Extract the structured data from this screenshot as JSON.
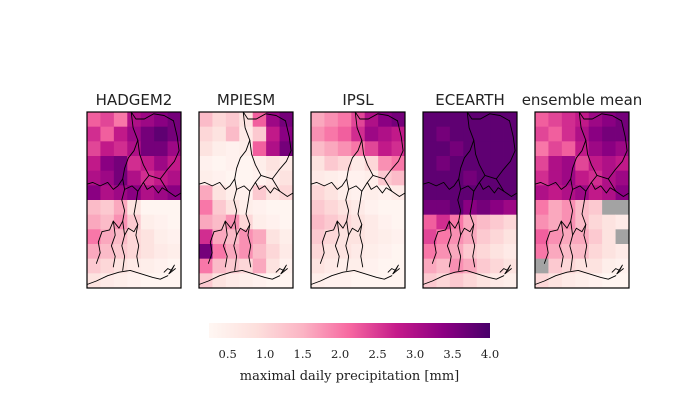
{
  "colors": {
    "missing": "#a3a3a3",
    "scale": [
      "#fff7f3",
      "#fde0dd",
      "#fbb4c4",
      "#f768a1",
      "#c51b8a",
      "#8d0083",
      "#49006a"
    ]
  },
  "chart_data": {
    "type": "heatmap",
    "colorbar": {
      "label": "maximal daily precipitation [mm]",
      "vmin": 0.25,
      "vmax": 4.0,
      "ticks": [
        "0.5",
        "1.0",
        "1.5",
        "2.0",
        "2.5",
        "3.0",
        "3.5",
        "4.0"
      ],
      "tick_values": [
        0.5,
        1.0,
        1.5,
        2.0,
        2.5,
        3.0,
        3.5,
        4.0
      ]
    },
    "panels": [
      {
        "title": "HADGEM2",
        "grid": [
          [
            2.2,
            2.4,
            2.0,
            3.0,
            3.2,
            3.4,
            3.6
          ],
          [
            2.6,
            2.2,
            2.8,
            3.2,
            3.6,
            3.8,
            3.6
          ],
          [
            2.4,
            2.8,
            2.6,
            3.0,
            3.6,
            3.6,
            3.2
          ],
          [
            2.8,
            3.4,
            3.6,
            2.6,
            2.8,
            3.2,
            2.8
          ],
          [
            3.0,
            3.2,
            3.6,
            3.0,
            2.6,
            2.8,
            3.0
          ],
          [
            3.4,
            3.0,
            3.2,
            3.4,
            3.0,
            3.2,
            3.4
          ],
          [
            1.4,
            1.2,
            1.6,
            0.8,
            0.3,
            0.3,
            0.3
          ],
          [
            1.6,
            1.4,
            1.8,
            1.2,
            0.5,
            0.4,
            0.3
          ],
          [
            2.0,
            1.6,
            1.4,
            1.0,
            0.8,
            0.5,
            0.4
          ],
          [
            1.6,
            1.4,
            1.2,
            1.0,
            0.8,
            0.6,
            0.5
          ],
          [
            1.2,
            1.0,
            0.8,
            0.6,
            0.5,
            0.4,
            0.3
          ],
          [
            0.8,
            0.6,
            0.5,
            0.4,
            0.3,
            0.3,
            0.3
          ]
        ]
      },
      {
        "title": "MPIESM",
        "grid": [
          [
            1.4,
            1.0,
            1.2,
            0.8,
            2.2,
            3.2,
            3.6
          ],
          [
            1.0,
            0.8,
            1.4,
            0.6,
            1.2,
            2.8,
            3.4
          ],
          [
            0.8,
            0.5,
            0.4,
            0.5,
            2.2,
            3.0,
            3.6
          ],
          [
            0.4,
            0.3,
            0.4,
            0.3,
            0.5,
            0.8,
            0.6
          ],
          [
            0.5,
            0.4,
            0.3,
            0.3,
            0.4,
            0.6,
            0.8
          ],
          [
            1.6,
            0.8,
            0.5,
            0.4,
            1.2,
            0.8,
            1.0
          ],
          [
            2.0,
            1.2,
            0.8,
            0.5,
            0.4,
            0.3,
            0.3
          ],
          [
            1.6,
            1.4,
            1.8,
            1.0,
            0.5,
            0.4,
            0.3
          ],
          [
            2.6,
            1.6,
            1.4,
            1.8,
            1.6,
            0.8,
            0.5
          ],
          [
            3.6,
            2.0,
            1.6,
            1.8,
            1.4,
            1.0,
            0.6
          ],
          [
            2.0,
            1.4,
            1.2,
            1.0,
            1.6,
            0.8,
            0.4
          ],
          [
            1.2,
            0.8,
            0.6,
            0.5,
            0.4,
            0.3,
            0.3
          ]
        ]
      },
      {
        "title": "IPSL",
        "grid": [
          [
            1.6,
            1.8,
            2.0,
            2.4,
            3.0,
            3.4,
            3.6
          ],
          [
            1.8,
            2.0,
            2.2,
            2.6,
            3.2,
            3.0,
            2.8
          ],
          [
            1.4,
            1.6,
            1.8,
            2.0,
            2.4,
            2.8,
            2.6
          ],
          [
            0.8,
            1.2,
            1.0,
            0.6,
            1.0,
            1.8,
            2.0
          ],
          [
            0.6,
            0.5,
            0.4,
            0.4,
            0.5,
            1.2,
            1.4
          ],
          [
            1.0,
            0.8,
            0.5,
            0.4,
            0.5,
            0.4,
            0.6
          ],
          [
            1.2,
            1.0,
            0.8,
            0.6,
            0.4,
            0.3,
            0.3
          ],
          [
            1.4,
            1.2,
            1.0,
            0.8,
            0.6,
            0.4,
            0.3
          ],
          [
            1.2,
            1.0,
            0.8,
            0.8,
            0.6,
            0.5,
            0.4
          ],
          [
            1.0,
            0.8,
            0.8,
            0.6,
            0.5,
            0.4,
            0.3
          ],
          [
            0.8,
            0.6,
            0.5,
            0.5,
            0.4,
            0.3,
            0.3
          ],
          [
            0.5,
            0.4,
            0.4,
            0.3,
            0.3,
            0.3,
            0.3
          ]
        ]
      },
      {
        "title": "ECEARTH",
        "grid": [
          [
            3.8,
            3.8,
            3.8,
            3.8,
            3.8,
            3.8,
            3.8
          ],
          [
            3.8,
            3.6,
            3.8,
            3.8,
            3.8,
            3.8,
            3.8
          ],
          [
            3.8,
            3.8,
            3.6,
            3.8,
            3.8,
            3.8,
            3.8
          ],
          [
            3.8,
            3.6,
            3.8,
            3.8,
            3.8,
            3.8,
            3.8
          ],
          [
            3.8,
            3.8,
            3.8,
            3.6,
            3.8,
            3.8,
            3.8
          ],
          [
            3.8,
            3.8,
            3.8,
            3.8,
            3.8,
            3.8,
            3.8
          ],
          [
            3.6,
            3.6,
            3.8,
            3.4,
            3.6,
            3.4,
            3.2
          ],
          [
            2.2,
            2.6,
            2.0,
            1.6,
            1.4,
            1.2,
            1.0
          ],
          [
            2.4,
            2.0,
            1.8,
            1.6,
            1.2,
            1.0,
            0.8
          ],
          [
            2.0,
            1.8,
            1.6,
            1.2,
            1.0,
            0.8,
            0.6
          ],
          [
            1.6,
            1.4,
            1.8,
            1.6,
            1.2,
            1.0,
            0.8
          ],
          [
            1.2,
            1.0,
            1.2,
            1.0,
            0.8,
            0.6,
            0.5
          ]
        ]
      },
      {
        "title": "ensemble mean",
        "grid": [
          [
            2.2,
            2.4,
            2.6,
            2.8,
            3.2,
            3.4,
            3.6
          ],
          [
            2.4,
            2.2,
            2.6,
            3.0,
            3.4,
            3.6,
            3.6
          ],
          [
            2.0,
            2.4,
            2.2,
            2.8,
            3.2,
            3.4,
            3.2
          ],
          [
            2.4,
            3.0,
            3.2,
            2.4,
            2.8,
            3.0,
            2.8
          ],
          [
            2.6,
            3.0,
            3.2,
            2.8,
            2.6,
            3.0,
            3.2
          ],
          [
            3.0,
            2.8,
            3.0,
            3.2,
            2.8,
            3.0,
            3.4
          ],
          [
            2.0,
            1.6,
            1.8,
            1.4,
            1.2,
            null,
            null
          ],
          [
            1.8,
            1.6,
            1.8,
            1.4,
            1.0,
            0.8,
            0.6
          ],
          [
            2.2,
            1.8,
            1.6,
            1.6,
            1.2,
            0.8,
            null
          ],
          [
            2.0,
            1.6,
            1.4,
            1.4,
            1.0,
            0.8,
            0.6
          ],
          [
            null,
            1.2,
            1.0,
            0.8,
            0.8,
            0.5,
            0.4
          ],
          [
            1.0,
            0.8,
            0.6,
            0.5,
            0.4,
            0.3,
            0.3
          ]
        ]
      }
    ]
  }
}
